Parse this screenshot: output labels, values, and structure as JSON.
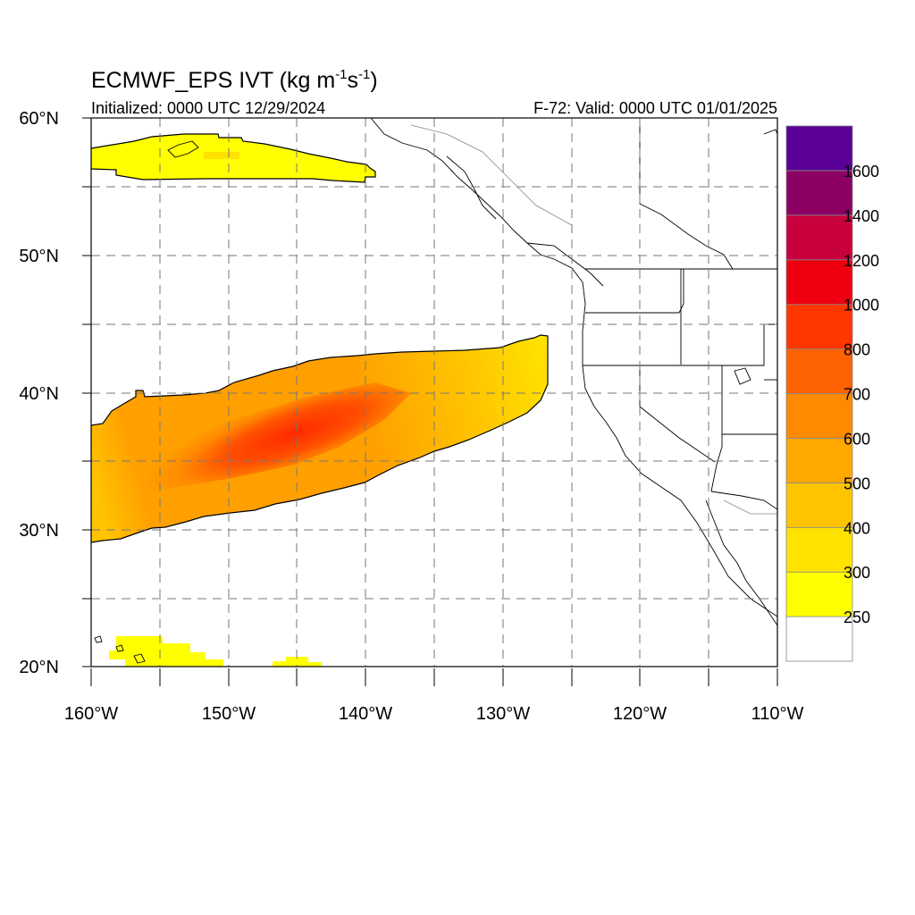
{
  "title": {
    "main": "ECMWF_EPS IVT (kg m",
    "sup1": "-1",
    "mid": "s",
    "sup2": "-1",
    "close": ")"
  },
  "subtitle_left": "Initialized: 0000 UTC 12/29/2024",
  "subtitle_right": "F-72: Valid: 0000 UTC 01/01/2025",
  "lat_labels": [
    "60°N",
    "50°N",
    "40°N",
    "30°N",
    "20°N"
  ],
  "lon_labels": [
    "160°W",
    "150°W",
    "140°W",
    "130°W",
    "120°W",
    "110°W"
  ],
  "map_extent": {
    "lon_min": -160,
    "lon_max": -110,
    "lat_min": 20,
    "lat_max": 60
  },
  "colorbar": {
    "levels": [
      "250",
      "300",
      "400",
      "500",
      "600",
      "700",
      "800",
      "1000",
      "1200",
      "1400",
      "1600"
    ],
    "colors": [
      "#ffffff",
      "#ffff00",
      "#ffe200",
      "#ffc400",
      "#ffa800",
      "#ff8a00",
      "#ff6200",
      "#ff3600",
      "#ee0010",
      "#c8003c",
      "#8c0064",
      "#5a0096"
    ]
  },
  "ivt_regions": [
    {
      "name": "alaska-gulf-plume",
      "level": 1
    },
    {
      "name": "main-atmospheric-river",
      "level": 1
    },
    {
      "name": "hawaii-patch",
      "level": 1
    }
  ]
}
